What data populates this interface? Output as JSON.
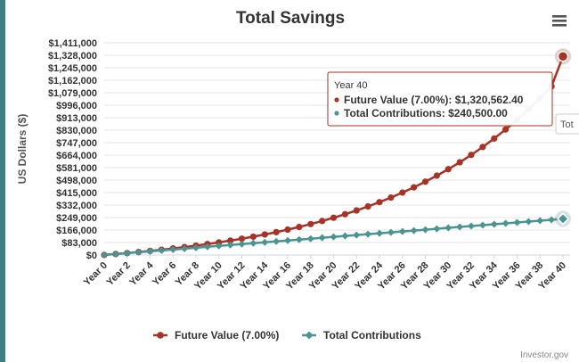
{
  "chart_data": {
    "type": "line",
    "title": "Total Savings",
    "ylabel": "US Dollars ($)",
    "xlabel": "",
    "ylim": [
      0,
      1411000
    ],
    "y_ticks": [
      0,
      83000,
      166000,
      249000,
      332000,
      415000,
      498000,
      581000,
      664000,
      747000,
      830000,
      913000,
      996000,
      1079000,
      1162000,
      1245000,
      1328000,
      1411000
    ],
    "y_tick_labels": [
      "$0",
      "$83,000",
      "$166,000",
      "$249,000",
      "$332,000",
      "$415,000",
      "$498,000",
      "$581,000",
      "$664,000",
      "$747,000",
      "$830,000",
      "$913,000",
      "$996,000",
      "$1,079,000",
      "$1,162,000",
      "$1,245,000",
      "$1,328,000",
      "$1,411,000"
    ],
    "x_tick_labels": [
      "Year 0",
      "Year 2",
      "Year 4",
      "Year 6",
      "Year 8",
      "Year 10",
      "Year 12",
      "Year 14",
      "Year 16",
      "Year 18",
      "Year 20",
      "Year 22",
      "Year 24",
      "Year 26",
      "Year 28",
      "Year 30",
      "Year 32",
      "Year 34",
      "Year 36",
      "Year 38",
      "Year 40"
    ],
    "x": [
      0,
      1,
      2,
      3,
      4,
      5,
      6,
      7,
      8,
      9,
      10,
      11,
      12,
      13,
      14,
      15,
      16,
      17,
      18,
      19,
      20,
      21,
      22,
      23,
      24,
      25,
      26,
      27,
      28,
      29,
      30,
      31,
      32,
      33,
      34,
      35,
      36,
      37,
      38,
      39,
      40
    ],
    "grid": true,
    "legend_position": "bottom",
    "series": [
      {
        "name": "Future Value (7.00%)",
        "color": "#a93226",
        "marker": "circle",
        "values": [
          500,
          6535,
          12992,
          19901,
          27293,
          35203,
          43667,
          52723,
          62413,
          72781,
          83875,
          95745,
          108447,
          122037,
          136579,
          152138,
          168786,
          186600,
          205661,
          226056,
          247879,
          271229,
          296214,
          322948,
          351554,
          382162,
          414912,
          449955,
          487451,
          527571,
          570500,
          616434,
          665584,
          718174,
          774445,
          834656,
          899082,
          968018,
          1041779,
          1120704,
          1320562.4
        ]
      },
      {
        "name": "Total Contributions",
        "color": "#4a9491",
        "marker": "diamond",
        "values": [
          500,
          6500,
          12500,
          18500,
          24500,
          30500,
          36500,
          42500,
          48500,
          54500,
          60500,
          66500,
          72500,
          78500,
          84500,
          90500,
          96500,
          102500,
          108500,
          114500,
          120500,
          126500,
          132500,
          138500,
          144500,
          150500,
          156500,
          162500,
          168500,
          174500,
          180500,
          186500,
          192500,
          198500,
          204500,
          210500,
          216500,
          222500,
          228500,
          234500,
          240500
        ]
      }
    ],
    "tooltip": {
      "header": "Year 40",
      "lines": [
        {
          "label": "Future Value (7.00%)",
          "value": "$1,320,562.40",
          "color": "#a93226"
        },
        {
          "label": "Total Contributions",
          "value": "$240,500.00",
          "color": "#4a9491"
        }
      ],
      "clipped_label": "Tot"
    }
  },
  "menu_icon": "hamburger-menu-icon",
  "credits": "Investor.gov"
}
